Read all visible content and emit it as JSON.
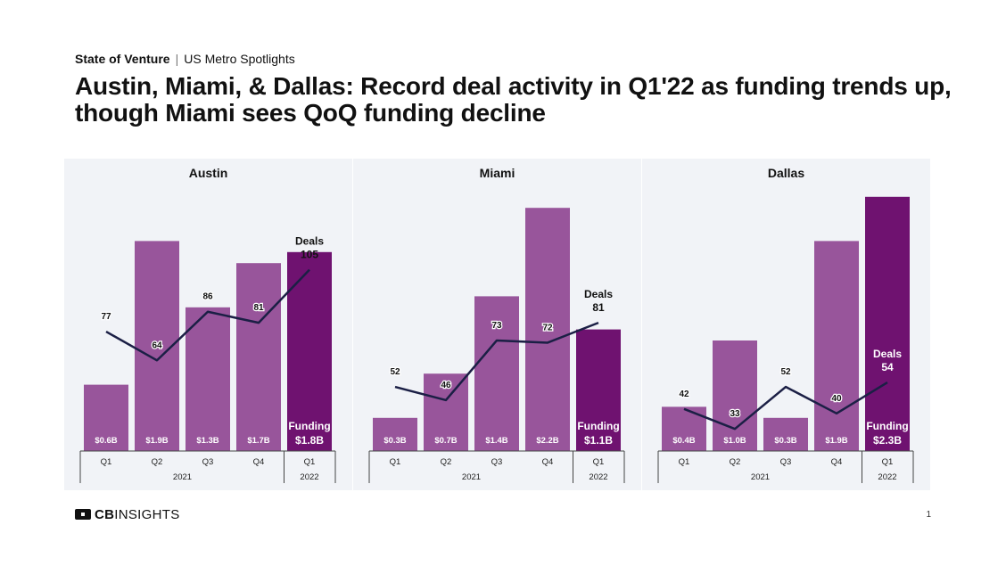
{
  "header": {
    "kicker_bold": "State of Venture",
    "kicker_sep": "|",
    "kicker_rest": "US Metro Spotlights",
    "title": "Austin, Miami, & Dallas: Record deal activity in Q1'22 as funding trends up, though Miami sees QoQ funding decline"
  },
  "footer": {
    "logo_bold": "CB",
    "logo_rest": "INSIGHTS",
    "page_number": "1"
  },
  "colors": {
    "bar": "#98559b",
    "bar_highlight": "#6f1270",
    "line": "#1b1f45",
    "panel_bg": "#f1f3f7"
  },
  "chart_data": [
    {
      "type": "bar",
      "title": "Austin",
      "categories": [
        "Q1",
        "Q2",
        "Q3",
        "Q4",
        "Q1"
      ],
      "year_groups": [
        {
          "label": "2021",
          "count": 4
        },
        {
          "label": "2022",
          "count": 1
        }
      ],
      "series": [
        {
          "values": [
            0.6,
            1.9,
            1.3,
            1.7,
            1.8
          ],
          "labels": [
            "$0.6B",
            "$1.9B",
            "$1.3B",
            "$1.7B",
            "$1.8B"
          ]
        },
        {
          "type": "line",
          "values": [
            77,
            64,
            86,
            81,
            105
          ]
        }
      ],
      "last_funding_caption": "Funding",
      "last_deals_caption": "Deals"
    },
    {
      "type": "bar",
      "title": "Miami",
      "categories": [
        "Q1",
        "Q2",
        "Q3",
        "Q4",
        "Q1"
      ],
      "year_groups": [
        {
          "label": "2021",
          "count": 4
        },
        {
          "label": "2022",
          "count": 1
        }
      ],
      "series": [
        {
          "values": [
            0.3,
            0.7,
            1.4,
            2.2,
            1.1
          ],
          "labels": [
            "$0.3B",
            "$0.7B",
            "$1.4B",
            "$2.2B",
            "$1.1B"
          ]
        },
        {
          "type": "line",
          "values": [
            52,
            46,
            73,
            72,
            81
          ]
        }
      ],
      "last_funding_caption": "Funding",
      "last_deals_caption": "Deals"
    },
    {
      "type": "bar",
      "title": "Dallas",
      "categories": [
        "Q1",
        "Q2",
        "Q3",
        "Q4",
        "Q1"
      ],
      "year_groups": [
        {
          "label": "2021",
          "count": 4
        },
        {
          "label": "2022",
          "count": 1
        }
      ],
      "series": [
        {
          "values": [
            0.4,
            1.0,
            0.3,
            1.9,
            2.3
          ],
          "labels": [
            "$0.4B",
            "$1.0B",
            "$0.3B",
            "$1.9B",
            "$2.3B"
          ]
        },
        {
          "type": "line",
          "values": [
            42,
            33,
            52,
            40,
            54
          ]
        }
      ],
      "last_funding_caption": "Funding",
      "last_deals_caption": "Deals"
    }
  ]
}
